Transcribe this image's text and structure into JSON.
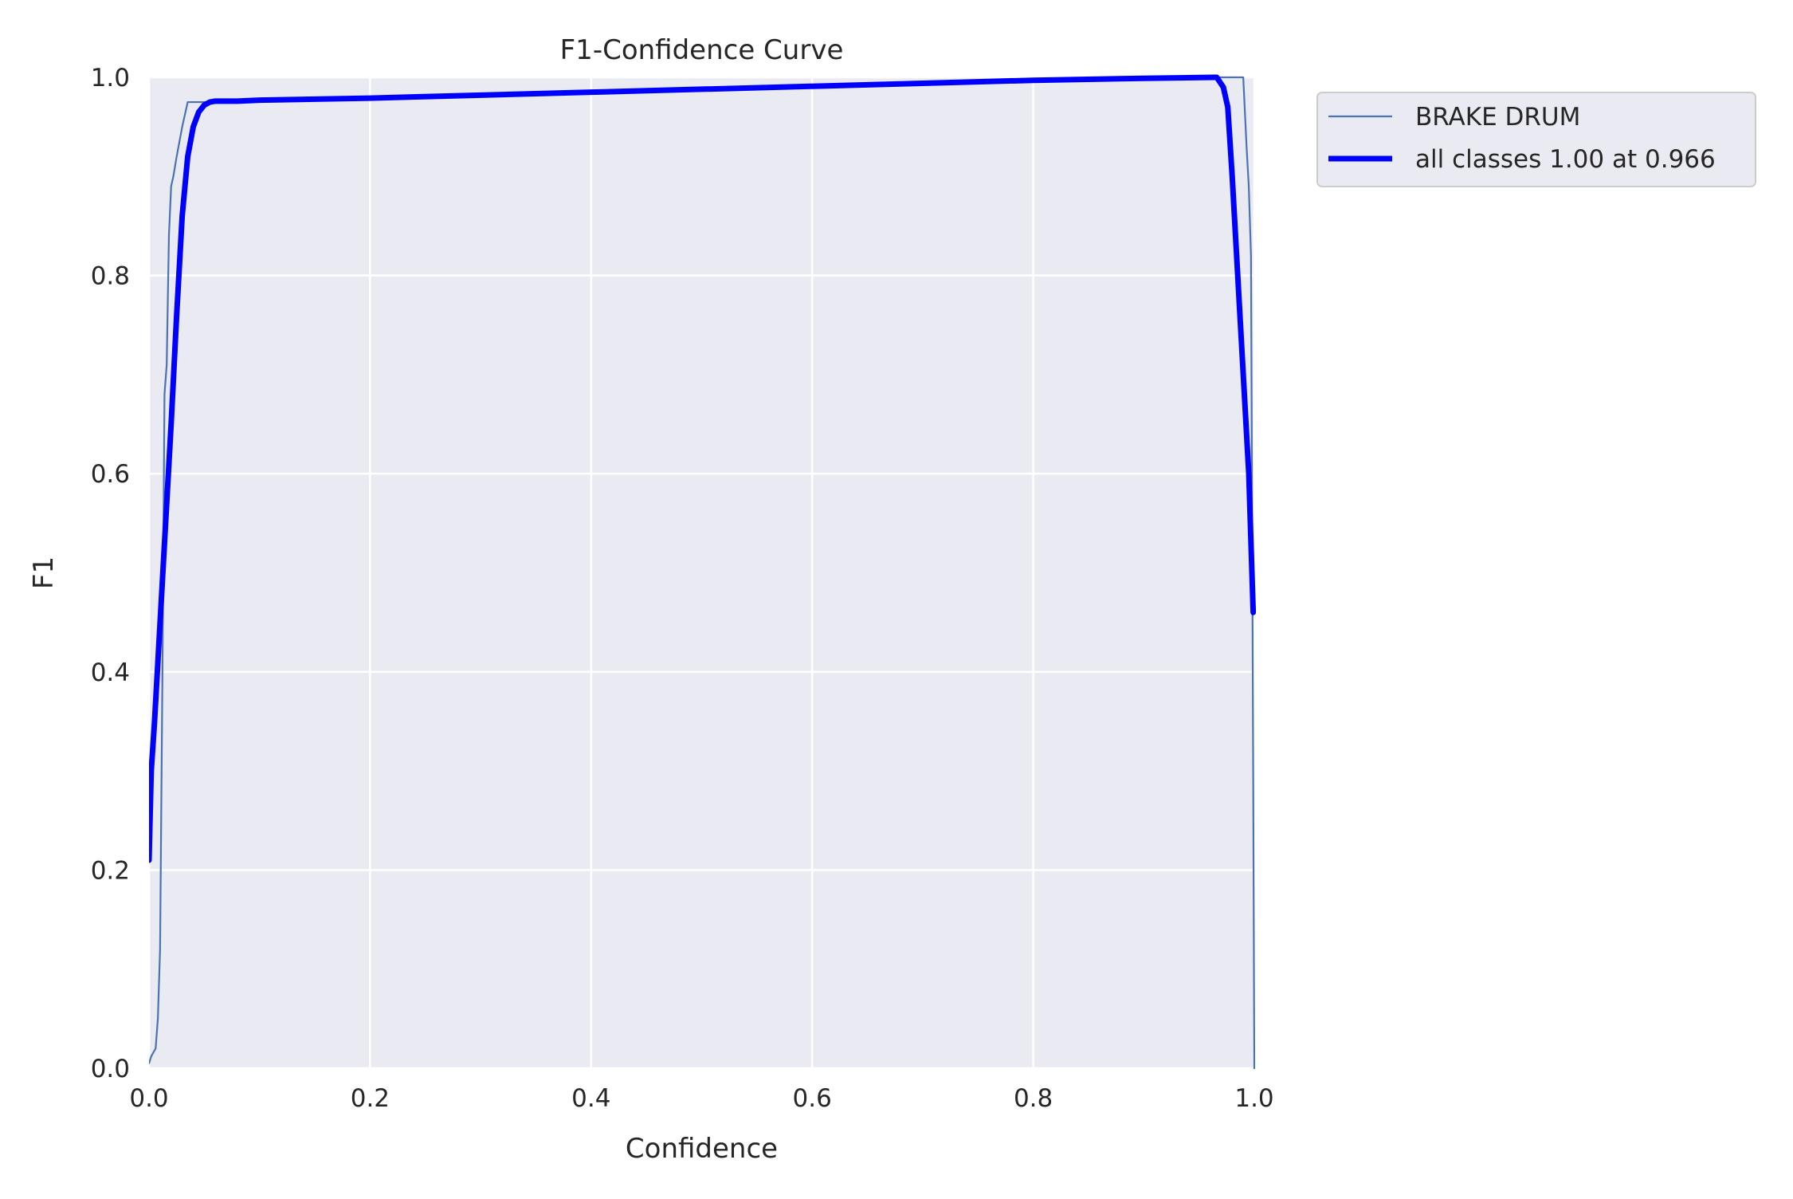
{
  "chart_data": {
    "type": "line",
    "title": "F1-Confidence Curve",
    "xlabel": "Confidence",
    "ylabel": "F1",
    "xlim": [
      0,
      1
    ],
    "ylim": [
      0,
      1
    ],
    "xticks": [
      "0.0",
      "0.2",
      "0.4",
      "0.6",
      "0.8",
      "1.0"
    ],
    "yticks": [
      "0.0",
      "0.2",
      "0.4",
      "0.6",
      "0.8",
      "1.0"
    ],
    "grid": true,
    "legend_position": "outside upper right",
    "background_color": "#eaeaf2",
    "series": [
      {
        "name": "BRAKE DRUM",
        "color": "#4c72b0",
        "width": "thin",
        "x": [
          0.0,
          0.002,
          0.006,
          0.008,
          0.01,
          0.012,
          0.014,
          0.016,
          0.018,
          0.02,
          0.022,
          0.025,
          0.03,
          0.035,
          0.04,
          0.05,
          0.06,
          0.08,
          0.1,
          0.2,
          0.3,
          0.4,
          0.5,
          0.6,
          0.7,
          0.8,
          0.9,
          0.966,
          0.98,
          0.99,
          0.993,
          0.995,
          0.997,
          0.999,
          1.0
        ],
        "y": [
          0.005,
          0.012,
          0.02,
          0.05,
          0.12,
          0.38,
          0.68,
          0.71,
          0.84,
          0.89,
          0.9,
          0.92,
          0.95,
          0.975,
          0.975,
          0.975,
          0.975,
          0.976,
          0.977,
          0.979,
          0.982,
          0.985,
          0.988,
          0.991,
          0.994,
          0.997,
          0.999,
          1.0,
          1.0,
          1.0,
          0.93,
          0.89,
          0.82,
          0.3,
          0.0
        ]
      },
      {
        "name": "all classes 1.00 at 0.966",
        "color": "#0000ff",
        "width": "thick",
        "x": [
          0.0,
          0.002,
          0.005,
          0.01,
          0.015,
          0.02,
          0.025,
          0.03,
          0.035,
          0.04,
          0.045,
          0.05,
          0.055,
          0.06,
          0.07,
          0.08,
          0.1,
          0.2,
          0.3,
          0.4,
          0.5,
          0.6,
          0.7,
          0.8,
          0.9,
          0.966,
          0.972,
          0.976,
          0.98,
          0.99,
          0.995,
          0.999
        ],
        "y": [
          0.21,
          0.3,
          0.35,
          0.45,
          0.55,
          0.65,
          0.76,
          0.86,
          0.92,
          0.95,
          0.965,
          0.972,
          0.975,
          0.976,
          0.976,
          0.976,
          0.977,
          0.979,
          0.982,
          0.985,
          0.988,
          0.991,
          0.994,
          0.997,
          0.999,
          1.0,
          0.99,
          0.97,
          0.9,
          0.7,
          0.6,
          0.46
        ]
      }
    ]
  }
}
